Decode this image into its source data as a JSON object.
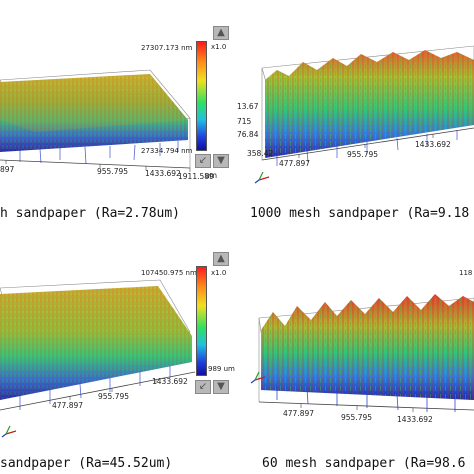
{
  "panels": [
    {
      "caption": "h sandpaper (Ra=2.78um)",
      "colorbar": {
        "top_value": "27307.173 nm",
        "bottom_value": "27334.794 nm",
        "zoom": "x1.0"
      },
      "x_ticks": [
        "897",
        "955.795",
        "1433.692",
        "1911.589"
      ],
      "x_unit": "um",
      "y_ticks": []
    },
    {
      "caption": "1000 mesh sandpaper (Ra=9.18",
      "colorbar": {
        "top_value": "",
        "bottom_value": "",
        "zoom": ""
      },
      "x_ticks": [
        "477.897",
        "955.795",
        "1433.692"
      ],
      "x_unit": "",
      "y_ticks": [
        "13.67",
        "76.84",
        "358.42"
      ],
      "y_ticks_side": [
        "715"
      ]
    },
    {
      "caption": "sandpaper (Ra=45.52um)",
      "colorbar": {
        "top_value": "107450.975 nm",
        "bottom_value": "989 um",
        "zoom": "x1.0"
      },
      "x_ticks": [
        "477.897",
        "955.795",
        "1433.692"
      ],
      "x_unit": "",
      "y_ticks": []
    },
    {
      "caption": "60 mesh sandpaper (Ra=98.6",
      "colorbar": {
        "top_value": "118",
        "bottom_value": "",
        "zoom": ""
      },
      "x_ticks": [
        "477.897",
        "955.795",
        "1433.692"
      ],
      "x_unit": "",
      "y_ticks": []
    }
  ],
  "icons": {
    "up": "arrow-up-icon",
    "down": "arrow-down-icon",
    "shrink": "arrow-shrink-icon",
    "expand": "arrow-expand-icon",
    "axis": "axis-triad-icon"
  },
  "colors": {
    "high": "#ff1a1a",
    "mid": "#30e060",
    "low": "#1010a0"
  }
}
